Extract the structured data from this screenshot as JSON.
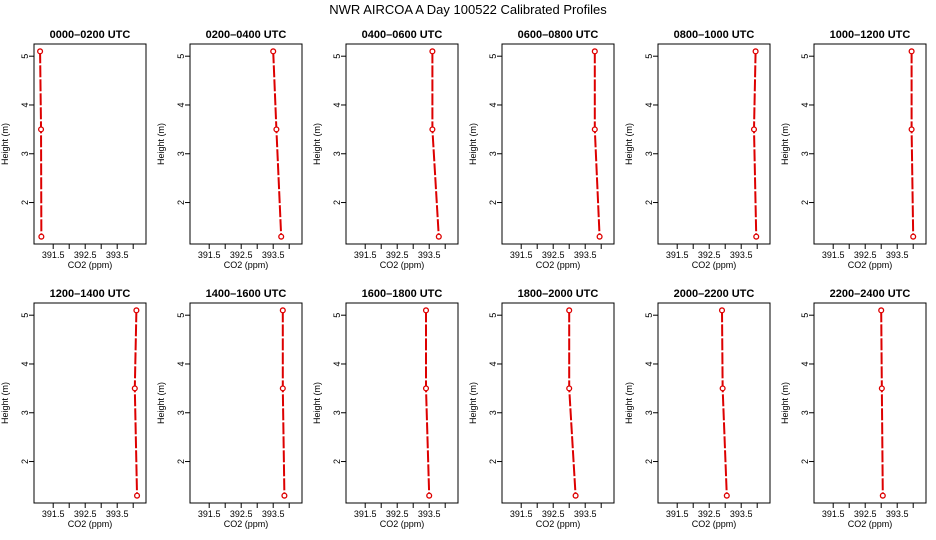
{
  "title": "NWR AIRCOA A  Day 100522  Calibrated Profiles",
  "chart_data": [
    {
      "type": "line",
      "title": "0000–0200 UTC",
      "xlabel": "CO2 (ppm)",
      "ylabel": "Height (m)",
      "xlim": [
        390.9,
        394.4
      ],
      "ylim": [
        1.15,
        5.25
      ],
      "x_ticks": [
        391.5,
        392.5,
        393.5
      ],
      "y_ticks": [
        2,
        3,
        4,
        5
      ],
      "x_tick_labels": [
        "391.5",
        "392.5",
        "393.5"
      ],
      "y_tick_labels": [
        "2",
        "3",
        "4",
        "5"
      ],
      "series": [
        {
          "x": [
            391.09,
            391.12,
            391.13
          ],
          "y": [
            5.1,
            3.5,
            1.3
          ]
        }
      ]
    },
    {
      "type": "line",
      "title": "0200–0400 UTC",
      "xlabel": "CO2 (ppm)",
      "ylabel": "Height (m)",
      "xlim": [
        390.9,
        394.4
      ],
      "ylim": [
        1.15,
        5.25
      ],
      "x_ticks": [
        391.5,
        392.5,
        393.5
      ],
      "y_ticks": [
        2,
        3,
        4,
        5
      ],
      "x_tick_labels": [
        "391.5",
        "392.5",
        "393.5"
      ],
      "y_tick_labels": [
        "2",
        "3",
        "4",
        "5"
      ],
      "series": [
        {
          "x": [
            393.5,
            393.6,
            393.75
          ],
          "y": [
            5.1,
            3.5,
            1.3
          ]
        }
      ]
    },
    {
      "type": "line",
      "title": "0400–0600 UTC",
      "xlabel": "CO2 (ppm)",
      "ylabel": "Height (m)",
      "xlim": [
        390.9,
        394.4
      ],
      "ylim": [
        1.15,
        5.25
      ],
      "x_ticks": [
        391.5,
        392.5,
        393.5
      ],
      "y_ticks": [
        2,
        3,
        4,
        5
      ],
      "x_tick_labels": [
        "391.5",
        "392.5",
        "393.5"
      ],
      "y_tick_labels": [
        "2",
        "3",
        "4",
        "5"
      ],
      "series": [
        {
          "x": [
            393.6,
            393.6,
            393.8
          ],
          "y": [
            5.1,
            3.5,
            1.3
          ]
        }
      ]
    },
    {
      "type": "line",
      "title": "0600–0800 UTC",
      "xlabel": "CO2 (ppm)",
      "ylabel": "Height (m)",
      "xlim": [
        390.9,
        394.4
      ],
      "ylim": [
        1.15,
        5.25
      ],
      "x_ticks": [
        391.5,
        392.5,
        393.5
      ],
      "y_ticks": [
        2,
        3,
        4,
        5
      ],
      "x_tick_labels": [
        "391.5",
        "392.5",
        "393.5"
      ],
      "y_tick_labels": [
        "2",
        "3",
        "4",
        "5"
      ],
      "series": [
        {
          "x": [
            393.8,
            393.8,
            393.95
          ],
          "y": [
            5.1,
            3.5,
            1.3
          ]
        }
      ]
    },
    {
      "type": "line",
      "title": "0800–1000 UTC",
      "xlabel": "CO2 (ppm)",
      "ylabel": "Height (m)",
      "xlim": [
        390.9,
        394.4
      ],
      "ylim": [
        1.15,
        5.25
      ],
      "x_ticks": [
        391.5,
        392.5,
        393.5
      ],
      "y_ticks": [
        2,
        3,
        4,
        5
      ],
      "x_tick_labels": [
        "391.5",
        "392.5",
        "393.5"
      ],
      "y_tick_labels": [
        "2",
        "3",
        "4",
        "5"
      ],
      "series": [
        {
          "x": [
            393.95,
            393.9,
            393.97
          ],
          "y": [
            5.1,
            3.5,
            1.3
          ]
        }
      ]
    },
    {
      "type": "line",
      "title": "1000–1200 UTC",
      "xlabel": "CO2 (ppm)",
      "ylabel": "Height (m)",
      "xlim": [
        390.9,
        394.4
      ],
      "ylim": [
        1.15,
        5.25
      ],
      "x_ticks": [
        391.5,
        392.5,
        393.5
      ],
      "y_ticks": [
        2,
        3,
        4,
        5
      ],
      "x_tick_labels": [
        "391.5",
        "392.5",
        "393.5"
      ],
      "y_tick_labels": [
        "2",
        "3",
        "4",
        "5"
      ],
      "series": [
        {
          "x": [
            393.95,
            393.95,
            394.0
          ],
          "y": [
            5.1,
            3.5,
            1.3
          ]
        }
      ]
    },
    {
      "type": "line",
      "title": "1200–1400 UTC",
      "xlabel": "CO2 (ppm)",
      "ylabel": "Height (m)",
      "xlim": [
        390.9,
        394.4
      ],
      "ylim": [
        1.15,
        5.25
      ],
      "x_ticks": [
        391.5,
        392.5,
        393.5
      ],
      "y_ticks": [
        2,
        3,
        4,
        5
      ],
      "x_tick_labels": [
        "391.5",
        "392.5",
        "393.5"
      ],
      "y_tick_labels": [
        "2",
        "3",
        "4",
        "5"
      ],
      "series": [
        {
          "x": [
            394.1,
            394.05,
            394.12
          ],
          "y": [
            5.1,
            3.5,
            1.3
          ]
        }
      ]
    },
    {
      "type": "line",
      "title": "1400–1600 UTC",
      "xlabel": "CO2 (ppm)",
      "ylabel": "Height (m)",
      "xlim": [
        390.9,
        394.4
      ],
      "ylim": [
        1.15,
        5.25
      ],
      "x_ticks": [
        391.5,
        392.5,
        393.5
      ],
      "y_ticks": [
        2,
        3,
        4,
        5
      ],
      "x_tick_labels": [
        "391.5",
        "392.5",
        "393.5"
      ],
      "y_tick_labels": [
        "2",
        "3",
        "4",
        "5"
      ],
      "series": [
        {
          "x": [
            393.8,
            393.8,
            393.85
          ],
          "y": [
            5.1,
            3.5,
            1.3
          ]
        }
      ]
    },
    {
      "type": "line",
      "title": "1600–1800 UTC",
      "xlabel": "CO2 (ppm)",
      "ylabel": "Height (m)",
      "xlim": [
        390.9,
        394.4
      ],
      "ylim": [
        1.15,
        5.25
      ],
      "x_ticks": [
        391.5,
        392.5,
        393.5
      ],
      "y_ticks": [
        2,
        3,
        4,
        5
      ],
      "x_tick_labels": [
        "391.5",
        "392.5",
        "393.5"
      ],
      "y_tick_labels": [
        "2",
        "3",
        "4",
        "5"
      ],
      "series": [
        {
          "x": [
            393.4,
            393.4,
            393.5
          ],
          "y": [
            5.1,
            3.5,
            1.3
          ]
        }
      ]
    },
    {
      "type": "line",
      "title": "1800–2000 UTC",
      "xlabel": "CO2 (ppm)",
      "ylabel": "Height (m)",
      "xlim": [
        390.9,
        394.4
      ],
      "ylim": [
        1.15,
        5.25
      ],
      "x_ticks": [
        391.5,
        392.5,
        393.5
      ],
      "y_ticks": [
        2,
        3,
        4,
        5
      ],
      "x_tick_labels": [
        "391.5",
        "392.5",
        "393.5"
      ],
      "y_tick_labels": [
        "2",
        "3",
        "4",
        "5"
      ],
      "series": [
        {
          "x": [
            393.0,
            393.0,
            393.2
          ],
          "y": [
            5.1,
            3.5,
            1.3
          ]
        }
      ]
    },
    {
      "type": "line",
      "title": "2000–2200 UTC",
      "xlabel": "CO2 (ppm)",
      "ylabel": "Height (m)",
      "xlim": [
        390.9,
        394.4
      ],
      "ylim": [
        1.15,
        5.25
      ],
      "x_ticks": [
        391.5,
        392.5,
        393.5
      ],
      "y_ticks": [
        2,
        3,
        4,
        5
      ],
      "x_tick_labels": [
        "391.5",
        "392.5",
        "393.5"
      ],
      "y_tick_labels": [
        "2",
        "3",
        "4",
        "5"
      ],
      "series": [
        {
          "x": [
            392.9,
            392.92,
            393.05
          ],
          "y": [
            5.1,
            3.5,
            1.3
          ]
        }
      ]
    },
    {
      "type": "line",
      "title": "2200–2400 UTC",
      "xlabel": "CO2 (ppm)",
      "ylabel": "Height (m)",
      "xlim": [
        390.9,
        394.4
      ],
      "ylim": [
        1.15,
        5.25
      ],
      "x_ticks": [
        391.5,
        392.5,
        393.5
      ],
      "y_ticks": [
        2,
        3,
        4,
        5
      ],
      "x_tick_labels": [
        "391.5",
        "392.5",
        "393.5"
      ],
      "y_tick_labels": [
        "2",
        "3",
        "4",
        "5"
      ],
      "series": [
        {
          "x": [
            393.0,
            393.02,
            393.05
          ],
          "y": [
            5.1,
            3.5,
            1.3
          ]
        }
      ]
    }
  ],
  "colors": {
    "line": "#dd0000",
    "marker": "#dd0000",
    "axis": "#000000",
    "background": "#ffffff"
  }
}
